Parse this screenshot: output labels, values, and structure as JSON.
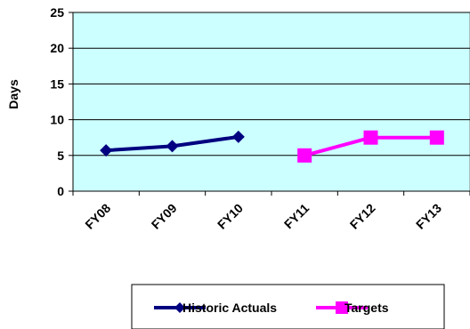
{
  "chart_data": {
    "type": "line",
    "categories": [
      "FY08",
      "FY09",
      "FY10",
      "FY11",
      "FY12",
      "FY13"
    ],
    "ylabel": "Days",
    "xlabel": "",
    "ylim": [
      0,
      25
    ],
    "yticks": [
      0,
      5,
      10,
      15,
      20,
      25
    ],
    "grid": true,
    "legend_position": "bottom",
    "plot_background": "#ccffff",
    "series": [
      {
        "name": "Historic Actuals",
        "color": "#000080",
        "marker": "diamond",
        "values": [
          5.7,
          6.3,
          7.6,
          null,
          null,
          null
        ]
      },
      {
        "name": "Targets",
        "color": "#ff00ff",
        "marker": "square",
        "values": [
          null,
          null,
          null,
          5.0,
          7.5,
          7.5
        ]
      }
    ]
  }
}
